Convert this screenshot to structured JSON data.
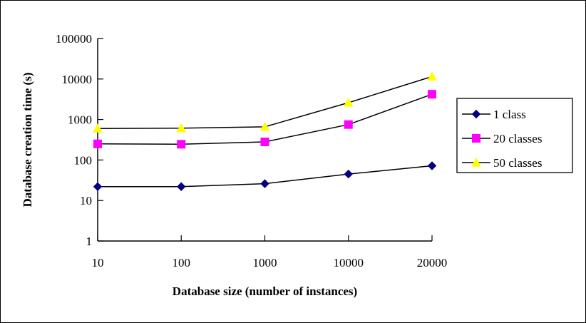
{
  "chart_data": {
    "type": "line",
    "x_scale": "category",
    "y_scale": "log",
    "categories": [
      "10",
      "100",
      "1000",
      "10000",
      "20000"
    ],
    "xlabel": "Database size (number of instances)",
    "ylabel": "Database creation time (s)",
    "ylim": [
      1,
      100000
    ],
    "y_ticks": [
      1,
      10,
      100,
      1000,
      10000,
      100000
    ],
    "y_tick_labels": [
      "1",
      "10",
      "100",
      "1000",
      "10000",
      "100000"
    ],
    "grid": false,
    "legend_position": "right",
    "series": [
      {
        "name": "1 class",
        "values": [
          22,
          22,
          26,
          45,
          72
        ],
        "color": "#000080",
        "marker": "diamond"
      },
      {
        "name": "20 classes",
        "values": [
          250,
          245,
          280,
          750,
          4200
        ],
        "color": "#FF00FF",
        "marker": "square"
      },
      {
        "name": "50 classes",
        "values": [
          600,
          610,
          660,
          2600,
          11500
        ],
        "color": "#FFFF00",
        "marker": "triangle"
      }
    ]
  }
}
